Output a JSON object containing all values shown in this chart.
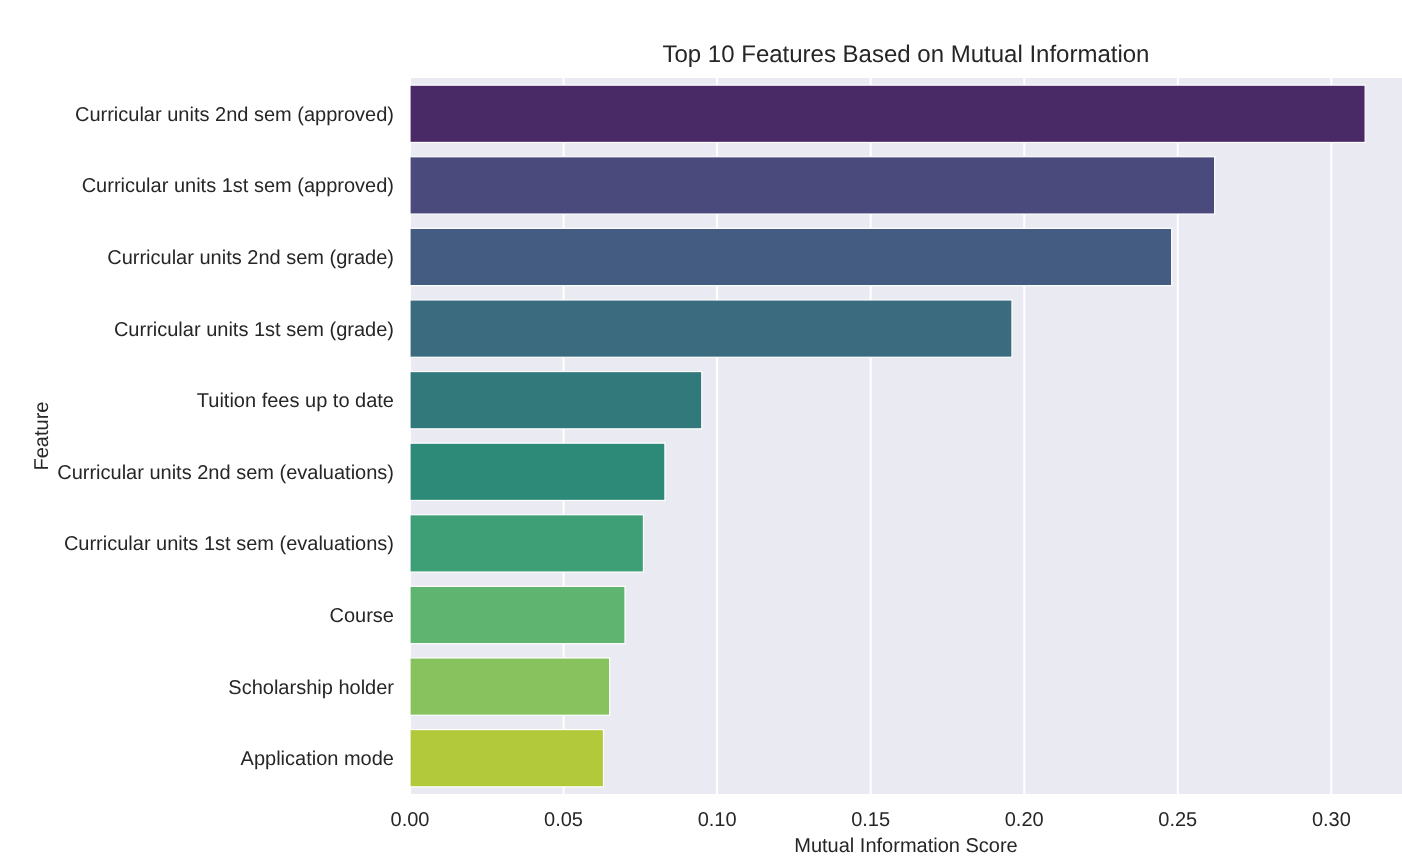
{
  "chart_data": {
    "type": "bar",
    "orientation": "horizontal",
    "title": "Top 10 Features Based on Mutual Information",
    "xlabel": "Mutual Information Score",
    "ylabel": "Feature",
    "categories": [
      "Curricular units 2nd sem (approved)",
      "Curricular units 1st sem (approved)",
      "Curricular units 2nd sem (grade)",
      "Curricular units 1st sem (grade)",
      "Tuition fees up to date",
      "Curricular units 2nd sem (evaluations)",
      "Curricular units 1st sem (evaluations)",
      "Course",
      "Scholarship holder",
      "Application mode"
    ],
    "values": [
      0.311,
      0.262,
      0.248,
      0.196,
      0.095,
      0.083,
      0.076,
      0.07,
      0.065,
      0.063
    ],
    "colors": [
      "#4a2a66",
      "#4b4a7c",
      "#445c82",
      "#3a6b7f",
      "#32797c",
      "#2e8a78",
      "#3e9e76",
      "#5fb46f",
      "#87c25e",
      "#b2c93b"
    ],
    "xlim": [
      0,
      0.323
    ],
    "xticks": [
      {
        "value": 0,
        "label": "0.00"
      },
      {
        "value": 0.05,
        "label": "0.05"
      },
      {
        "value": 0.1,
        "label": "0.10"
      },
      {
        "value": 0.15,
        "label": "0.15"
      },
      {
        "value": 0.2,
        "label": "0.20"
      },
      {
        "value": 0.25,
        "label": "0.25"
      },
      {
        "value": 0.3,
        "label": "0.30"
      }
    ],
    "grid": "x"
  }
}
